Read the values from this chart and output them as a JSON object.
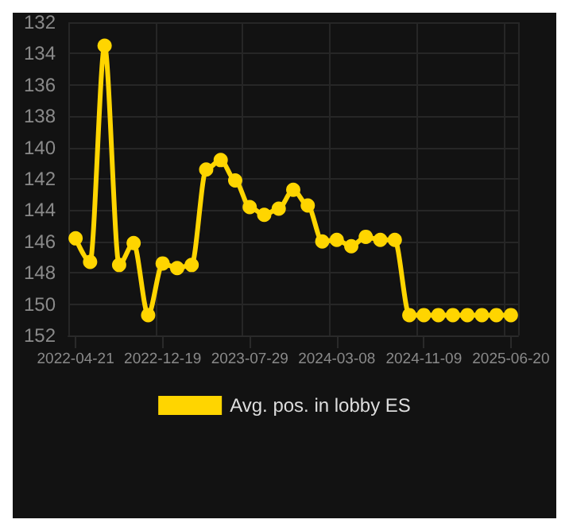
{
  "chart_data": {
    "type": "line",
    "categories": [
      "2022-04-21",
      null,
      null,
      null,
      null,
      null,
      "2022-12-19",
      null,
      null,
      null,
      null,
      null,
      "2023-07-29",
      null,
      null,
      null,
      null,
      null,
      "2024-03-08",
      null,
      null,
      null,
      null,
      null,
      "2024-11-09",
      null,
      null,
      null,
      null,
      null,
      "2025-06-20"
    ],
    "series": [
      {
        "name": "Avg. pos. in lobby ES",
        "color": "#ffd500",
        "values": [
          145.8,
          147.3,
          133.5,
          147.5,
          146.1,
          150.7,
          147.4,
          147.7,
          147.5,
          141.4,
          140.8,
          142.1,
          143.8,
          144.3,
          143.9,
          142.7,
          143.7,
          146.0,
          145.9,
          146.3,
          145.7,
          145.9,
          145.9,
          150.7,
          150.7,
          150.7,
          150.7,
          150.7,
          150.7,
          150.7,
          150.7
        ]
      }
    ],
    "ylim": [
      152,
      132
    ],
    "yticks": [
      132,
      134,
      136,
      138,
      140,
      142,
      144,
      146,
      148,
      150,
      152
    ],
    "grid": true,
    "legend": "bottom",
    "marker": "circle",
    "line_style": "solid"
  }
}
